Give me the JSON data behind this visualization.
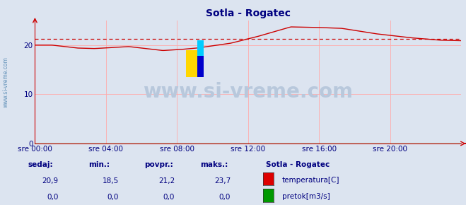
{
  "title": "Sotla - Rogatec",
  "title_color": "#000080",
  "bg_color": "#dce4f0",
  "plot_bg_color": "#dce4f0",
  "grid_color": "#ffaaaa",
  "axis_color": "#cc0000",
  "watermark_text": "www.si-vreme.com",
  "watermark_color": "#b8c8dc",
  "watermark_fontsize": 20,
  "left_label": "www.si-vreme.com",
  "left_label_color": "#6090b8",
  "ylim": [
    0,
    25
  ],
  "yticks": [
    0,
    10,
    20
  ],
  "xtick_labels": [
    "sre 00:00",
    "sre 04:00",
    "sre 08:00",
    "sre 12:00",
    "sre 16:00",
    "sre 20:00"
  ],
  "xtick_positions": [
    0.0,
    0.1667,
    0.3333,
    0.5,
    0.6667,
    0.8333
  ],
  "avg_line_y": 21.2,
  "avg_line_color": "#cc0000",
  "temp_line_color": "#cc0000",
  "pretok_line_color": "#009900",
  "logo_yellow": "#FFD700",
  "logo_blue_dark": "#0000CC",
  "logo_blue_light": "#00CCFF",
  "text_color": "#000080",
  "stats_headers": [
    "sedaj:",
    "min.:",
    "povpr.:",
    "maks.:"
  ],
  "stats_temp": [
    "20,9",
    "18,5",
    "21,2",
    "23,7"
  ],
  "stats_pretok": [
    "0,0",
    "0,0",
    "0,0",
    "0,0"
  ],
  "legend_title": "Sotla - Rogatec",
  "legend_items": [
    {
      "label": "temperatura[C]",
      "color": "#dd0000"
    },
    {
      "label": "pretok[m3/s]",
      "color": "#009900"
    }
  ]
}
